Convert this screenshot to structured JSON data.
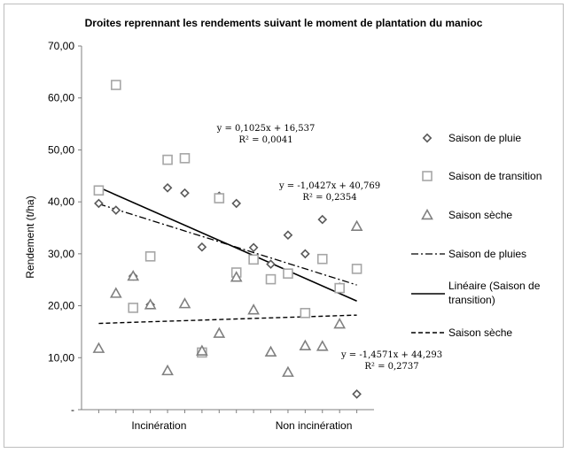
{
  "chart_data": {
    "type": "scatter",
    "title": "Droites reprennant les rendements suivant  le moment de plantation du manioc",
    "xlabel": "",
    "ylabel": "Rendement (t/ha)",
    "ylim": [
      0,
      70
    ],
    "yticks": [
      "-",
      "10,00",
      "20,00",
      "30,00",
      "40,00",
      "50,00",
      "60,00",
      "70,00"
    ],
    "xlim": [
      0,
      17
    ],
    "x_category_labels": [
      {
        "label": "Incinération",
        "x": 4.5
      },
      {
        "label": "Non incinération",
        "x": 13.5
      }
    ],
    "grid": false,
    "legend_position": "right",
    "series": [
      {
        "name": "Saison de pluie",
        "marker": "diamond",
        "color": "#595959",
        "x": [
          1,
          2,
          3,
          4,
          5,
          6,
          7,
          8,
          9,
          10,
          11,
          12,
          13,
          14,
          15,
          16
        ],
        "y": [
          39.7,
          38.4,
          25.7,
          20.2,
          42.7,
          41.7,
          31.3,
          41.1,
          39.7,
          31.2,
          28.0,
          33.6,
          30.0,
          36.6,
          23.6,
          3.0
        ]
      },
      {
        "name": "Saison de transition",
        "marker": "square",
        "color": "#a6a6a6",
        "x": [
          1,
          2,
          3,
          4,
          5,
          6,
          7,
          8,
          9,
          10,
          11,
          12,
          13,
          14,
          15,
          16
        ],
        "y": [
          42.2,
          62.5,
          19.6,
          29.5,
          48.1,
          48.4,
          11.0,
          40.7,
          26.4,
          28.9,
          25.1,
          26.2,
          18.6,
          29.0,
          23.4,
          27.1
        ]
      },
      {
        "name": "Saison sèche",
        "marker": "triangle",
        "color": "#808080",
        "x": [
          1,
          2,
          3,
          4,
          5,
          6,
          7,
          8,
          9,
          10,
          11,
          12,
          13,
          14,
          15,
          16
        ],
        "y": [
          11.8,
          22.4,
          25.7,
          20.2,
          7.5,
          20.4,
          11.3,
          14.7,
          25.5,
          19.2,
          11.1,
          7.2,
          12.3,
          12.2,
          16.5,
          35.3
        ]
      }
    ],
    "trendlines": [
      {
        "name": "Saison de pluies",
        "style": "dash-dot",
        "color": "#000000",
        "x": [
          1,
          16
        ],
        "y": [
          39.6,
          24.0
        ]
      },
      {
        "name": "Linéaire (Saison de transition)",
        "style": "solid",
        "color": "#000000",
        "x": [
          1,
          16
        ],
        "y": [
          42.8,
          20.9
        ]
      },
      {
        "name": "Saison sèche",
        "style": "dashed",
        "color": "#000000",
        "x": [
          1,
          16
        ],
        "y": [
          16.6,
          18.2
        ]
      }
    ],
    "equations": [
      {
        "line1": "y = 0,1025x + 16,537",
        "line2": "R² = 0,0041"
      },
      {
        "line1": "y = -1,0427x + 40,769",
        "line2": "R² = 0,2354"
      },
      {
        "line1": "y = -1,4571x + 44,293",
        "line2": "R² = 0,2737"
      }
    ]
  }
}
